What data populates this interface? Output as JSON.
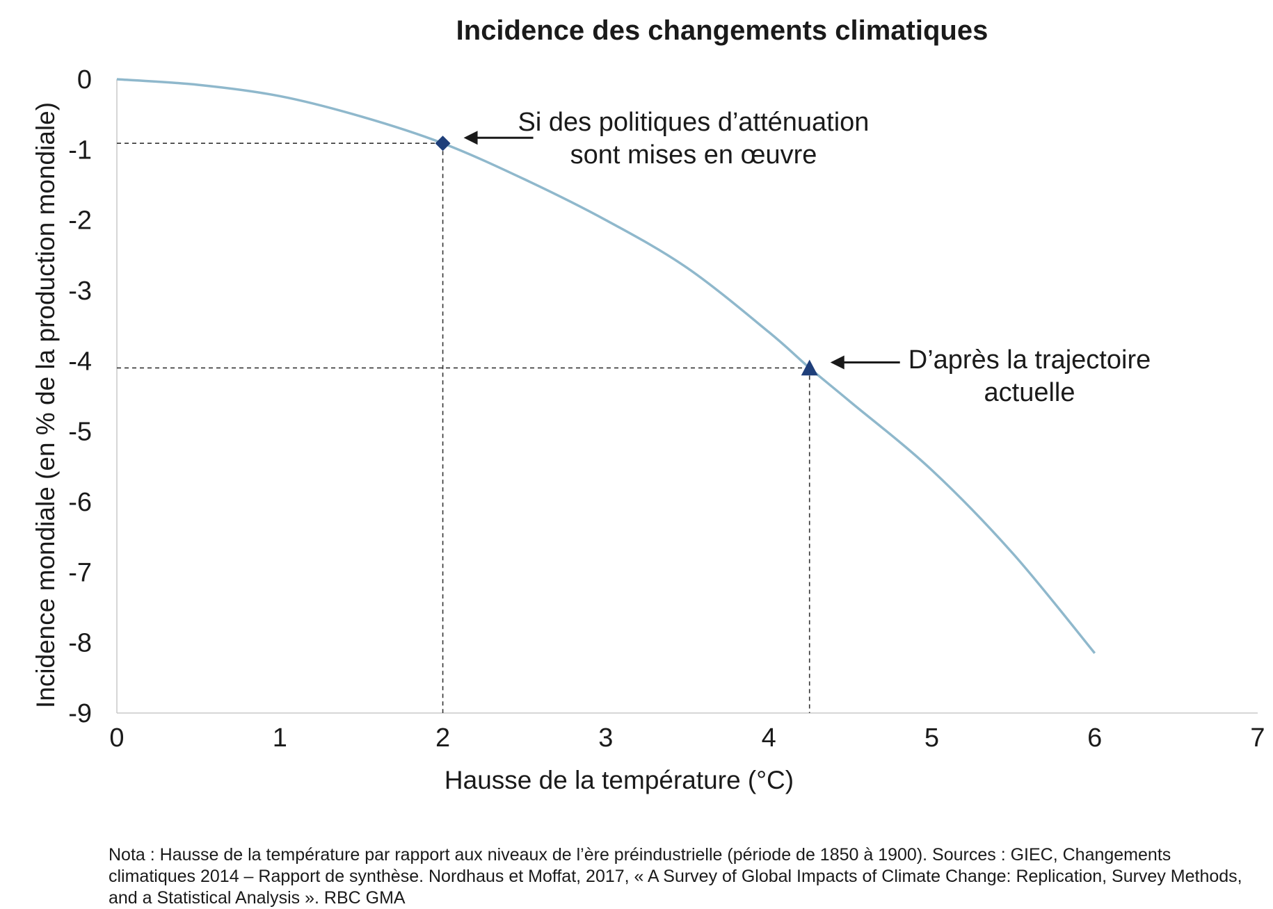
{
  "chart_data": {
    "type": "line",
    "title": "Incidence des changements climatiques",
    "xlabel": "Hausse de la température (°C)",
    "ylabel": "Incidence mondiale (en % de la production mondiale)",
    "xlim": [
      0,
      7
    ],
    "ylim": [
      -9,
      0
    ],
    "x_ticks": [
      "0",
      "1",
      "2",
      "3",
      "4",
      "5",
      "6",
      "7"
    ],
    "y_ticks": [
      "0",
      "-1",
      "-2",
      "-3",
      "-4",
      "-5",
      "-6",
      "-7",
      "-8",
      "-9"
    ],
    "grid": false,
    "series": [
      {
        "color": "#8fb8cc",
        "x": [
          0,
          0.5,
          1,
          1.5,
          2,
          2.5,
          3,
          3.5,
          4,
          4.25,
          4.5,
          5,
          5.5,
          6
        ],
        "y": [
          0,
          -0.08,
          -0.24,
          -0.53,
          -0.91,
          -1.42,
          -2.0,
          -2.68,
          -3.59,
          -4.1,
          -4.58,
          -5.55,
          -6.74,
          -8.15
        ]
      }
    ],
    "highlights": [
      {
        "marker": "diamond",
        "x": 2,
        "y": -0.91,
        "color": "#1f3f7a",
        "label_lines": [
          "Si des politiques d’atténuation",
          "sont mises en œuvre"
        ]
      },
      {
        "marker": "triangle",
        "x": 4.25,
        "y": -4.1,
        "color": "#1f3f7a",
        "label_lines": [
          "D’après la trajectoire",
          "actuelle"
        ]
      }
    ]
  },
  "note": "Nota : Hausse de la température par rapport aux niveaux de l’ère préindustrielle (période de 1850 à 1900). Sources : GIEC, Changements climatiques 2014 – Rapport de synthèse. Nordhaus et Moffat, 2017, « A Survey of Global Impacts of Climate Change: Replication, Survey Methods, and a Statistical Analysis ». RBC GMA"
}
